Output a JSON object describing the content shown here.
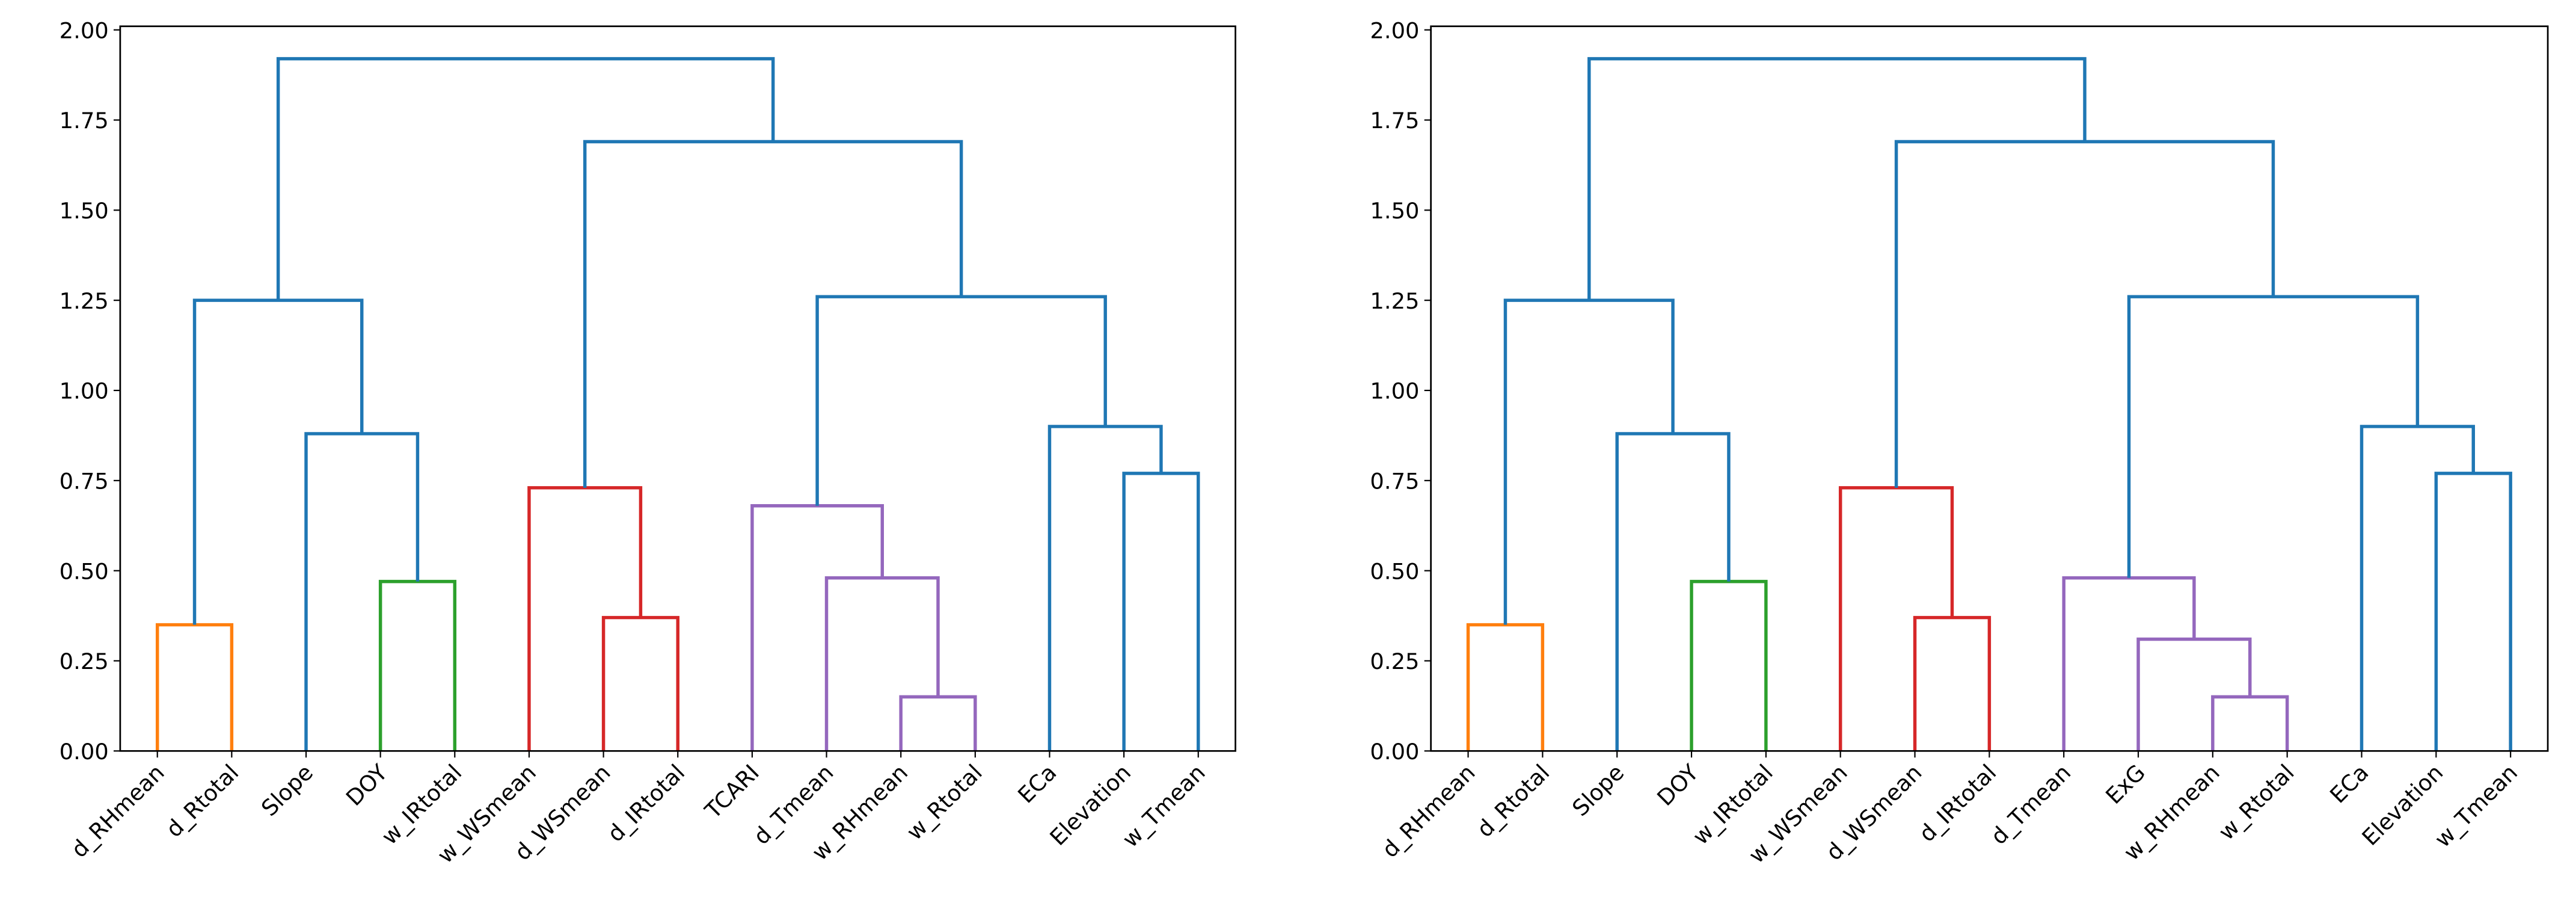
{
  "chart_data": [
    {
      "type": "dendrogram",
      "leaves": [
        "d_RHmean",
        "d_Rtotal",
        "Slope",
        "DOY",
        "w_IRtotal",
        "w_WSmean",
        "d_WSmean",
        "d_IRtotal",
        "TCARI",
        "d_Tmean",
        "w_RHmean",
        "w_Rtotal",
        "ECa",
        "Elevation",
        "w_Tmean"
      ],
      "merges": [
        {
          "left": 0,
          "right": 1,
          "height": 0.35,
          "color": "#ff7f0e"
        },
        {
          "left": 3,
          "right": 4,
          "height": 0.47,
          "color": "#2ca02c"
        },
        {
          "left": 2,
          "right": 16,
          "height": 0.88,
          "color": "#1f77b4"
        },
        {
          "left": 15,
          "right": 17,
          "height": 1.25,
          "color": "#1f77b4"
        },
        {
          "left": 6,
          "right": 7,
          "height": 0.37,
          "color": "#d62728"
        },
        {
          "left": 5,
          "right": 19,
          "height": 0.73,
          "color": "#d62728"
        },
        {
          "left": 10,
          "right": 11,
          "height": 0.15,
          "color": "#9467bd"
        },
        {
          "left": 9,
          "right": 21,
          "height": 0.48,
          "color": "#9467bd"
        },
        {
          "left": 8,
          "right": 22,
          "height": 0.68,
          "color": "#9467bd"
        },
        {
          "left": 13,
          "right": 14,
          "height": 0.77,
          "color": "#1f77b4"
        },
        {
          "left": 12,
          "right": 24,
          "height": 0.9,
          "color": "#1f77b4"
        },
        {
          "left": 23,
          "right": 25,
          "height": 1.26,
          "color": "#1f77b4"
        },
        {
          "left": 20,
          "right": 26,
          "height": 1.69,
          "color": "#1f77b4"
        },
        {
          "left": 18,
          "right": 27,
          "height": 1.92,
          "color": "#1f77b4"
        }
      ],
      "ylim": [
        0,
        2.01
      ],
      "yticks": [
        {
          "value": 0,
          "label": "0.00"
        },
        {
          "value": 0.25,
          "label": "0.25"
        },
        {
          "value": 0.5,
          "label": "0.50"
        },
        {
          "value": 0.75,
          "label": "0.75"
        },
        {
          "value": 1,
          "label": "1.00"
        },
        {
          "value": 1.25,
          "label": "1.25"
        },
        {
          "value": 1.5,
          "label": "1.50"
        },
        {
          "value": 1.75,
          "label": "1.75"
        },
        {
          "value": 2,
          "label": "2.00"
        }
      ]
    },
    {
      "type": "dendrogram",
      "leaves": [
        "d_RHmean",
        "d_Rtotal",
        "Slope",
        "DOY",
        "w_IRtotal",
        "w_WSmean",
        "d_WSmean",
        "d_IRtotal",
        "d_Tmean",
        "ExG",
        "w_RHmean",
        "w_Rtotal",
        "ECa",
        "Elevation",
        "w_Tmean"
      ],
      "merges": [
        {
          "left": 0,
          "right": 1,
          "height": 0.35,
          "color": "#ff7f0e"
        },
        {
          "left": 3,
          "right": 4,
          "height": 0.47,
          "color": "#2ca02c"
        },
        {
          "left": 2,
          "right": 16,
          "height": 0.88,
          "color": "#1f77b4"
        },
        {
          "left": 15,
          "right": 17,
          "height": 1.25,
          "color": "#1f77b4"
        },
        {
          "left": 6,
          "right": 7,
          "height": 0.37,
          "color": "#d62728"
        },
        {
          "left": 5,
          "right": 19,
          "height": 0.73,
          "color": "#d62728"
        },
        {
          "left": 10,
          "right": 11,
          "height": 0.15,
          "color": "#9467bd"
        },
        {
          "left": 9,
          "right": 21,
          "height": 0.31,
          "color": "#9467bd"
        },
        {
          "left": 8,
          "right": 22,
          "height": 0.48,
          "color": "#9467bd"
        },
        {
          "left": 13,
          "right": 14,
          "height": 0.77,
          "color": "#1f77b4"
        },
        {
          "left": 12,
          "right": 24,
          "height": 0.9,
          "color": "#1f77b4"
        },
        {
          "left": 23,
          "right": 25,
          "height": 1.26,
          "color": "#1f77b4"
        },
        {
          "left": 20,
          "right": 26,
          "height": 1.69,
          "color": "#1f77b4"
        },
        {
          "left": 18,
          "right": 27,
          "height": 1.92,
          "color": "#1f77b4"
        }
      ],
      "ylim": [
        0,
        2.01
      ],
      "yticks": [
        {
          "value": 0,
          "label": "0.00"
        },
        {
          "value": 0.25,
          "label": "0.25"
        },
        {
          "value": 0.5,
          "label": "0.50"
        },
        {
          "value": 0.75,
          "label": "0.75"
        },
        {
          "value": 1,
          "label": "1.00"
        },
        {
          "value": 1.25,
          "label": "1.25"
        },
        {
          "value": 1.5,
          "label": "1.50"
        },
        {
          "value": 1.75,
          "label": "1.75"
        },
        {
          "value": 2,
          "label": "2.00"
        }
      ]
    }
  ]
}
